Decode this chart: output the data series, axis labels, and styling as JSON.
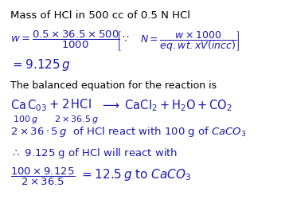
{
  "bg_color": "#ffffff",
  "text_color": "#1a1aaa",
  "black_color": "#000000",
  "title": "Mass of HCl in 500 cc of 0.5 N HCl",
  "line1_left": "$w = \\dfrac{0.5 \\times 36.5 \\times 500}{1000}$",
  "line1_bracket": "$\\left[\\because \\quad N = \\dfrac{w \\times 1000}{eq.wt.xV(incc)}\\right]$",
  "line2": "$= 9.125\\,g$",
  "line3": "The balanced equation for the reaction is",
  "line4_eq": "$\\mathrm{CaC_{03}} + \\mathrm{2\\,HCl} \\longrightarrow \\mathrm{CaCl_2} + \\mathrm{H_2O} + \\mathrm{CO_2}$",
  "line4_sub1": "100 g",
  "line4_sub2": "$2 \\times 36.5\\,g$",
  "line5": "$2 \\times 36 \\cdot 5\\,g$ of HCl react with 100 g of $\\mathit{CaCO_3}$",
  "line6": "$\\therefore$ 9.125 g of HCl will react with",
  "line7_left": "$\\dfrac{100 \\times 9.125}{2 \\times 36.5}$",
  "line7_right": "$= 12.5\\,g$ to $\\mathit{CaCO_3}$",
  "figsize": [
    3.58,
    2.7
  ],
  "dpi": 100
}
